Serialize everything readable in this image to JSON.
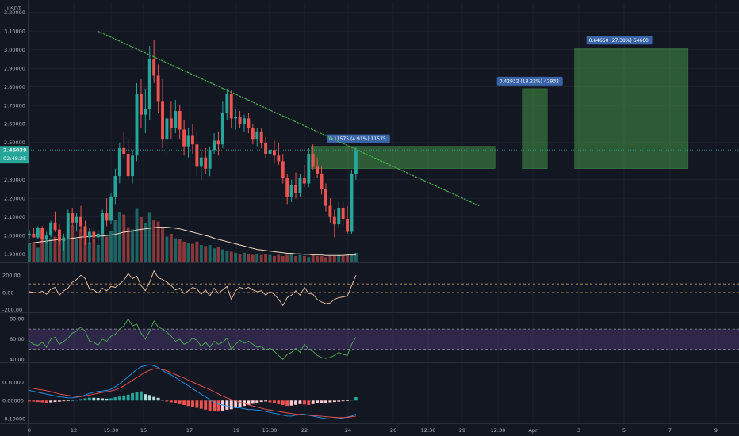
{
  "chart_data": [
    {
      "type": "candlestick",
      "currency": "USDT",
      "price_tick_labels": [
        "3.20000",
        "3.10000",
        "3.00000",
        "2.90000",
        "2.80000",
        "2.70000",
        "2.60000",
        "2.50000",
        "2.30000",
        "2.20000",
        "2.10000",
        "2.00000",
        "1.90000"
      ],
      "price_ticks": [
        3.2,
        3.1,
        3.0,
        2.9,
        2.8,
        2.7,
        2.6,
        2.5,
        2.3,
        2.2,
        2.1,
        2.0,
        1.9
      ],
      "ylim": [
        1.86,
        3.25
      ],
      "x_tick_labels": [
        "0",
        "12",
        "15:30",
        "15",
        "17",
        "19",
        "15:30",
        "22",
        "24",
        "26",
        "12:30",
        "29",
        "12:30",
        "Apr",
        "3",
        "5",
        "7",
        "9"
      ],
      "current_price": {
        "price": 2.46039,
        "label": "2.46039",
        "countdown": "02:48:25",
        "color": "#26a69a"
      },
      "candles": [
        [
          2.0,
          2.03,
          1.98,
          2.01
        ],
        [
          2.01,
          2.04,
          1.99,
          1.99
        ],
        [
          1.99,
          2.05,
          1.98,
          2.04
        ],
        [
          2.04,
          2.05,
          1.97,
          1.98
        ],
        [
          1.98,
          2.02,
          1.96,
          2.0
        ],
        [
          2.0,
          2.08,
          1.99,
          2.07
        ],
        [
          2.07,
          2.13,
          2.02,
          2.03
        ],
        [
          2.03,
          2.06,
          1.95,
          1.97
        ],
        [
          1.97,
          2.01,
          1.92,
          1.99
        ],
        [
          1.99,
          2.14,
          1.98,
          2.12
        ],
        [
          2.12,
          2.15,
          2.05,
          2.07
        ],
        [
          2.07,
          2.12,
          2.02,
          2.1
        ],
        [
          2.1,
          2.16,
          2.02,
          2.05
        ],
        [
          2.05,
          2.08,
          1.95,
          1.99
        ],
        [
          1.99,
          2.04,
          1.95,
          2.02
        ],
        [
          2.02,
          2.04,
          1.96,
          1.99
        ],
        [
          1.99,
          2.03,
          1.94,
          2.01
        ],
        [
          2.01,
          2.14,
          2.0,
          2.12
        ],
        [
          2.12,
          2.2,
          2.05,
          2.08
        ],
        [
          2.08,
          2.23,
          2.06,
          2.21
        ],
        [
          2.21,
          2.36,
          2.17,
          2.32
        ],
        [
          2.32,
          2.5,
          2.28,
          2.47
        ],
        [
          2.47,
          2.56,
          2.41,
          2.44
        ],
        [
          2.44,
          2.52,
          2.3,
          2.32
        ],
        [
          2.32,
          2.46,
          2.28,
          2.43
        ],
        [
          2.43,
          2.82,
          2.4,
          2.76
        ],
        [
          2.76,
          2.84,
          2.58,
          2.65
        ],
        [
          2.65,
          2.79,
          2.55,
          2.68
        ],
        [
          2.68,
          3.02,
          2.62,
          2.95
        ],
        [
          2.95,
          3.05,
          2.82,
          2.86
        ],
        [
          2.86,
          2.92,
          2.66,
          2.72
        ],
        [
          2.72,
          2.84,
          2.47,
          2.52
        ],
        [
          2.52,
          2.68,
          2.43,
          2.63
        ],
        [
          2.63,
          2.72,
          2.52,
          2.58
        ],
        [
          2.58,
          2.73,
          2.55,
          2.67
        ],
        [
          2.67,
          2.7,
          2.52,
          2.57
        ],
        [
          2.57,
          2.62,
          2.43,
          2.48
        ],
        [
          2.48,
          2.58,
          2.42,
          2.54
        ],
        [
          2.54,
          2.6,
          2.44,
          2.49
        ],
        [
          2.49,
          2.56,
          2.32,
          2.37
        ],
        [
          2.37,
          2.45,
          2.3,
          2.42
        ],
        [
          2.42,
          2.47,
          2.33,
          2.36
        ],
        [
          2.36,
          2.48,
          2.32,
          2.46
        ],
        [
          2.46,
          2.55,
          2.44,
          2.51
        ],
        [
          2.51,
          2.56,
          2.43,
          2.49
        ],
        [
          2.49,
          2.72,
          2.47,
          2.66
        ],
        [
          2.66,
          2.79,
          2.62,
          2.76
        ],
        [
          2.76,
          2.78,
          2.58,
          2.63
        ],
        [
          2.63,
          2.68,
          2.57,
          2.64
        ],
        [
          2.64,
          2.67,
          2.58,
          2.6
        ],
        [
          2.6,
          2.65,
          2.56,
          2.63
        ],
        [
          2.63,
          2.66,
          2.55,
          2.58
        ],
        [
          2.58,
          2.6,
          2.49,
          2.52
        ],
        [
          2.52,
          2.58,
          2.48,
          2.56
        ],
        [
          2.56,
          2.58,
          2.47,
          2.5
        ],
        [
          2.5,
          2.53,
          2.42,
          2.44
        ],
        [
          2.44,
          2.48,
          2.4,
          2.46
        ],
        [
          2.46,
          2.51,
          2.39,
          2.43
        ],
        [
          2.43,
          2.5,
          2.38,
          2.4
        ],
        [
          2.4,
          2.44,
          2.28,
          2.31
        ],
        [
          2.31,
          2.33,
          2.17,
          2.21
        ],
        [
          2.21,
          2.3,
          2.18,
          2.27
        ],
        [
          2.27,
          2.34,
          2.2,
          2.23
        ],
        [
          2.23,
          2.33,
          2.21,
          2.31
        ],
        [
          2.31,
          2.38,
          2.26,
          2.28
        ],
        [
          2.28,
          2.47,
          2.26,
          2.44
        ],
        [
          2.44,
          2.49,
          2.35,
          2.37
        ],
        [
          2.37,
          2.42,
          2.31,
          2.33
        ],
        [
          2.33,
          2.37,
          2.22,
          2.25
        ],
        [
          2.25,
          2.28,
          2.13,
          2.16
        ],
        [
          2.16,
          2.2,
          2.07,
          2.1
        ],
        [
          2.1,
          2.14,
          1.99,
          2.06
        ],
        [
          2.06,
          2.18,
          2.04,
          2.15
        ],
        [
          2.15,
          2.18,
          2.05,
          2.09
        ],
        [
          2.09,
          2.16,
          2.01,
          2.02
        ],
        [
          2.02,
          2.35,
          2.01,
          2.33
        ],
        [
          2.33,
          2.48,
          2.3,
          2.46
        ]
      ],
      "volumes": [
        0.32,
        0.35,
        0.25,
        0.55,
        0.4,
        0.42,
        0.45,
        0.58,
        0.38,
        0.5,
        0.65,
        0.4,
        0.58,
        0.5,
        0.35,
        0.42,
        0.3,
        0.52,
        0.45,
        0.55,
        0.75,
        0.9,
        0.85,
        0.62,
        0.58,
        0.95,
        0.8,
        0.7,
        0.88,
        0.75,
        0.72,
        0.62,
        0.45,
        0.5,
        0.42,
        0.4,
        0.36,
        0.34,
        0.32,
        0.36,
        0.3,
        0.28,
        0.3,
        0.24,
        0.26,
        0.22,
        0.2,
        0.18,
        0.16,
        0.14,
        0.16,
        0.14,
        0.12,
        0.14,
        0.12,
        0.14,
        0.12,
        0.1,
        0.12,
        0.1,
        0.12,
        0.14,
        0.1,
        0.12,
        0.1,
        0.08,
        0.12,
        0.1,
        0.1,
        0.08,
        0.1,
        0.1,
        0.12,
        0.1,
        0.12,
        0.14,
        0.16
      ],
      "volume_ma": [
        0.33,
        0.34,
        0.35,
        0.36,
        0.37,
        0.38,
        0.39,
        0.4,
        0.4,
        0.41,
        0.42,
        0.43,
        0.44,
        0.45,
        0.45,
        0.46,
        0.46,
        0.46,
        0.47,
        0.48,
        0.49,
        0.51,
        0.53,
        0.54,
        0.55,
        0.57,
        0.58,
        0.59,
        0.6,
        0.61,
        0.62,
        0.62,
        0.62,
        0.61,
        0.6,
        0.59,
        0.57,
        0.55,
        0.53,
        0.51,
        0.49,
        0.47,
        0.45,
        0.42,
        0.4,
        0.38,
        0.36,
        0.34,
        0.32,
        0.3,
        0.28,
        0.26,
        0.24,
        0.22,
        0.21,
        0.2,
        0.19,
        0.18,
        0.17,
        0.16,
        0.15,
        0.15,
        0.14,
        0.14,
        0.13,
        0.13,
        0.12,
        0.12,
        0.12,
        0.11,
        0.11,
        0.11,
        0.11,
        0.11,
        0.12,
        0.12,
        0.12
      ],
      "trendline": {
        "from": [
          15.5,
          3.1
        ],
        "to": [
          23.9,
          2.16
        ]
      },
      "boxes": [
        {
          "label": "0.11575 (4.91%) 11575",
          "x0": 20.2,
          "x1": 24.25,
          "y0": 2.36,
          "y1": 2.48
        },
        {
          "label": "0.42932 (18.22%) 42932",
          "x0": 24.85,
          "x1": 25.4,
          "y0": 2.36,
          "y1": 2.79
        },
        {
          "label": "0.64660 (27.38%) 64660",
          "x0": 26.0,
          "x1": 28.5,
          "y0": 2.36,
          "y1": 3.01
        }
      ],
      "up_color": "#26a69a",
      "down_color": "#ef5350"
    },
    {
      "type": "line",
      "name": "CCI",
      "ytick_labels": [
        "200.00",
        "0.00",
        "-200.00"
      ],
      "ytick_values": [
        200,
        0,
        -200
      ],
      "ylim": [
        -220,
        330
      ],
      "bands": [
        100,
        0
      ],
      "color": "#f2c7a5",
      "values": [
        10,
        0,
        -5,
        15,
        -20,
        40,
        60,
        -30,
        20,
        50,
        120,
        150,
        200,
        160,
        40,
        30,
        -10,
        50,
        20,
        70,
        60,
        100,
        140,
        220,
        160,
        190,
        80,
        20,
        120,
        250,
        170,
        150,
        120,
        80,
        30,
        50,
        -10,
        20,
        60,
        40,
        -20,
        30,
        -40,
        50,
        -10,
        30,
        70,
        -80,
        20,
        60,
        40,
        60,
        30,
        10,
        20,
        -30,
        10,
        -20,
        -80,
        -150,
        -60,
        -30,
        20,
        -30,
        60,
        -10,
        -20,
        -80,
        -110,
        -130,
        -120,
        -80,
        -60,
        -50,
        -40,
        80,
        200
      ]
    },
    {
      "type": "line",
      "name": "RSI",
      "ytick_labels": [
        "80.00",
        "60.00",
        "40.00"
      ],
      "ytick_values": [
        80,
        60,
        40
      ],
      "ylim": [
        38,
        85
      ],
      "band": [
        50,
        70
      ],
      "color": "#4caf50",
      "values": [
        58,
        55,
        54,
        57,
        52,
        60,
        62,
        55,
        58,
        61,
        66,
        68,
        72,
        68,
        58,
        57,
        54,
        60,
        58,
        63,
        65,
        70,
        73,
        80,
        73,
        75,
        66,
        60,
        68,
        78,
        72,
        70,
        67,
        63,
        58,
        60,
        55,
        57,
        61,
        59,
        53,
        57,
        52,
        58,
        55,
        57,
        61,
        50,
        55,
        59,
        56,
        58,
        55,
        52,
        53,
        49,
        51,
        48,
        44,
        40,
        45,
        47,
        51,
        47,
        55,
        50,
        48,
        44,
        42,
        41,
        42,
        44,
        47,
        45,
        44,
        55,
        62
      ]
    },
    {
      "type": "bar+line",
      "name": "MACD",
      "ytick_labels": [
        "0.10000",
        "0.00000",
        "-0.10000"
      ],
      "ytick_values": [
        0.1,
        0.0,
        -0.1
      ],
      "ylim": [
        -0.12,
        0.2
      ],
      "macd_color": "#2196f3",
      "signal_color": "#ef5350",
      "histogram": [
        -0.005,
        -0.006,
        -0.008,
        -0.01,
        -0.012,
        -0.01,
        -0.008,
        -0.006,
        -0.004,
        -0.002,
        0.0,
        0.004,
        0.008,
        0.012,
        0.016,
        0.015,
        0.014,
        0.012,
        0.01,
        0.012,
        0.018,
        0.022,
        0.028,
        0.032,
        0.04,
        0.045,
        0.05,
        0.035,
        0.03,
        0.02,
        0.015,
        0.005,
        -0.005,
        -0.01,
        -0.015,
        -0.02,
        -0.025,
        -0.03,
        -0.036,
        -0.04,
        -0.045,
        -0.05,
        -0.055,
        -0.058,
        -0.06,
        -0.055,
        -0.05,
        -0.048,
        -0.04,
        -0.035,
        -0.03,
        -0.024,
        -0.018,
        -0.012,
        -0.008,
        -0.005,
        -0.01,
        -0.016,
        -0.02,
        -0.025,
        -0.03,
        -0.028,
        -0.024,
        -0.02,
        -0.022,
        -0.025,
        -0.02,
        -0.016,
        -0.014,
        -0.012,
        -0.01,
        -0.008,
        -0.006,
        -0.004,
        -0.003,
        0.004,
        0.018
      ],
      "macd": [
        0.055,
        0.05,
        0.045,
        0.04,
        0.035,
        0.03,
        0.025,
        0.02,
        0.018,
        0.015,
        0.015,
        0.018,
        0.022,
        0.03,
        0.04,
        0.045,
        0.05,
        0.052,
        0.055,
        0.062,
        0.075,
        0.09,
        0.11,
        0.13,
        0.15,
        0.17,
        0.185,
        0.19,
        0.195,
        0.19,
        0.18,
        0.165,
        0.15,
        0.14,
        0.125,
        0.11,
        0.095,
        0.08,
        0.065,
        0.05,
        0.035,
        0.02,
        0.005,
        -0.01,
        -0.02,
        -0.025,
        -0.03,
        -0.035,
        -0.04,
        -0.04,
        -0.045,
        -0.05,
        -0.05,
        -0.052,
        -0.055,
        -0.06,
        -0.065,
        -0.07,
        -0.075,
        -0.08,
        -0.085,
        -0.085,
        -0.08,
        -0.075,
        -0.075,
        -0.08,
        -0.085,
        -0.09,
        -0.095,
        -0.098,
        -0.1,
        -0.1,
        -0.098,
        -0.095,
        -0.09,
        -0.085,
        -0.075
      ],
      "signal": [
        0.07,
        0.066,
        0.062,
        0.058,
        0.054,
        0.048,
        0.042,
        0.036,
        0.032,
        0.028,
        0.025,
        0.022,
        0.022,
        0.025,
        0.03,
        0.035,
        0.04,
        0.044,
        0.048,
        0.052,
        0.058,
        0.068,
        0.08,
        0.095,
        0.11,
        0.125,
        0.14,
        0.155,
        0.165,
        0.172,
        0.175,
        0.17,
        0.162,
        0.152,
        0.142,
        0.132,
        0.122,
        0.112,
        0.1,
        0.09,
        0.08,
        0.07,
        0.06,
        0.048,
        0.036,
        0.024,
        0.014,
        0.006,
        -0.002,
        -0.008,
        -0.015,
        -0.024,
        -0.03,
        -0.036,
        -0.042,
        -0.048,
        -0.052,
        -0.056,
        -0.06,
        -0.064,
        -0.068,
        -0.071,
        -0.074,
        -0.076,
        -0.078,
        -0.08,
        -0.082,
        -0.084,
        -0.086,
        -0.088,
        -0.09,
        -0.092,
        -0.093,
        -0.093,
        -0.092,
        -0.089,
        -0.085
      ]
    }
  ]
}
